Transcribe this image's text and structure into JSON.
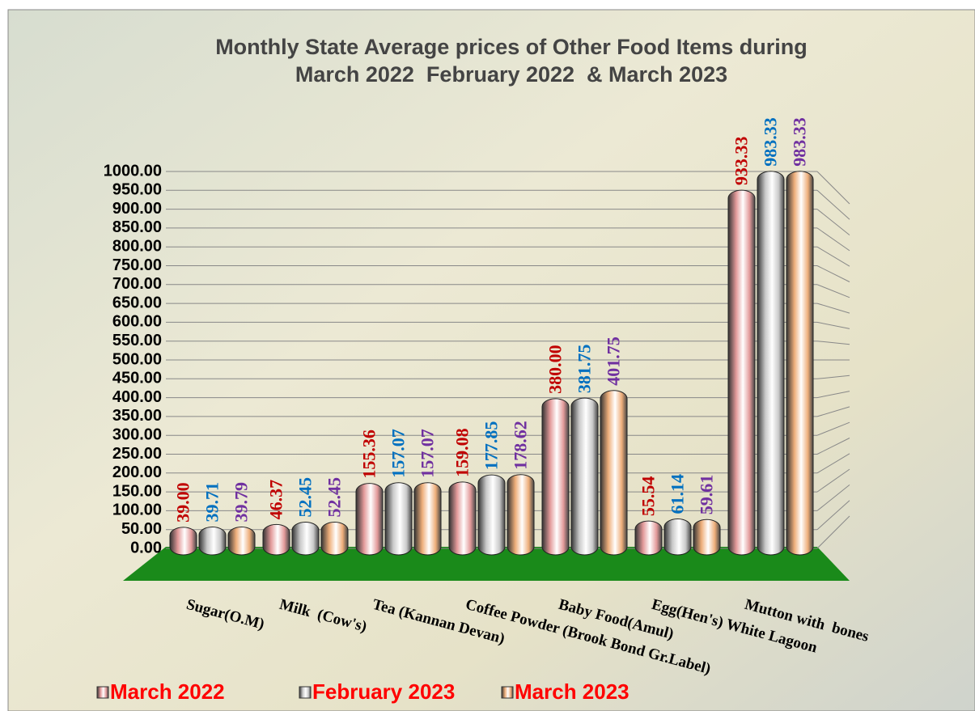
{
  "chart_data": {
    "type": "bar",
    "title": "Monthly State Average prices of Other Food Items during",
    "subtitle": "March 2022  February 2022  & March 2023",
    "categories": [
      "Sugar(O.M)",
      "Milk  (Cow's)",
      "Tea (Kannan Devan)",
      "Coffee Powder (Brook Bond Gr.Label)",
      "Baby Food(Amul)",
      "Egg(Hen's) White Lagoon",
      "Mutton with  bones"
    ],
    "series": [
      {
        "name": "March 2022",
        "color": "#e39a9a",
        "label_color": "#c00000",
        "values": [
          39.0,
          46.37,
          155.36,
          159.08,
          380.0,
          55.54,
          933.33
        ],
        "value_labels": [
          "39.00",
          "46.37",
          "155.36",
          "159.08",
          "380.00",
          "55.54",
          "933.33"
        ]
      },
      {
        "name": "February 2023",
        "color": "#c9c9c9",
        "label_color": "#0070c0",
        "values": [
          39.71,
          52.45,
          157.07,
          177.85,
          381.75,
          61.14,
          983.33
        ],
        "value_labels": [
          "39.71",
          "52.45",
          "157.07",
          "177.85",
          "381.75",
          "61.14",
          "983.33"
        ]
      },
      {
        "name": "March 2023",
        "color": "#eeae7a",
        "label_color": "#7030a0",
        "values": [
          39.79,
          52.45,
          157.07,
          178.62,
          401.75,
          59.61,
          983.33
        ],
        "value_labels": [
          "39.79",
          "52.45",
          "157.07",
          "178.62",
          "401.75",
          "59.61",
          "983.33"
        ]
      }
    ],
    "ylim": [
      0,
      1000
    ],
    "yticks": [
      {
        "value": 0,
        "label": "0.00"
      },
      {
        "value": 50,
        "label": "50.00"
      },
      {
        "value": 100,
        "label": "100.00"
      },
      {
        "value": 150,
        "label": "150.00"
      },
      {
        "value": 200,
        "label": "200.00"
      },
      {
        "value": 250,
        "label": "250.00"
      },
      {
        "value": 300,
        "label": "300.00"
      },
      {
        "value": 350,
        "label": "350.00"
      },
      {
        "value": 400,
        "label": "400.00"
      },
      {
        "value": 450,
        "label": "450.00"
      },
      {
        "value": 500,
        "label": "500.00"
      },
      {
        "value": 550,
        "label": "550.00"
      },
      {
        "value": 600,
        "label": "600.00"
      },
      {
        "value": 650,
        "label": "650.00"
      },
      {
        "value": 700,
        "label": "700.00"
      },
      {
        "value": 750,
        "label": "750.00"
      },
      {
        "value": 800,
        "label": "800.00"
      },
      {
        "value": 850,
        "label": "850.00"
      },
      {
        "value": 900,
        "label": "900.00"
      },
      {
        "value": 950,
        "label": "950.00"
      },
      {
        "value": 1000,
        "label": "1000.00"
      }
    ],
    "grid": true,
    "legend": "bottom"
  }
}
